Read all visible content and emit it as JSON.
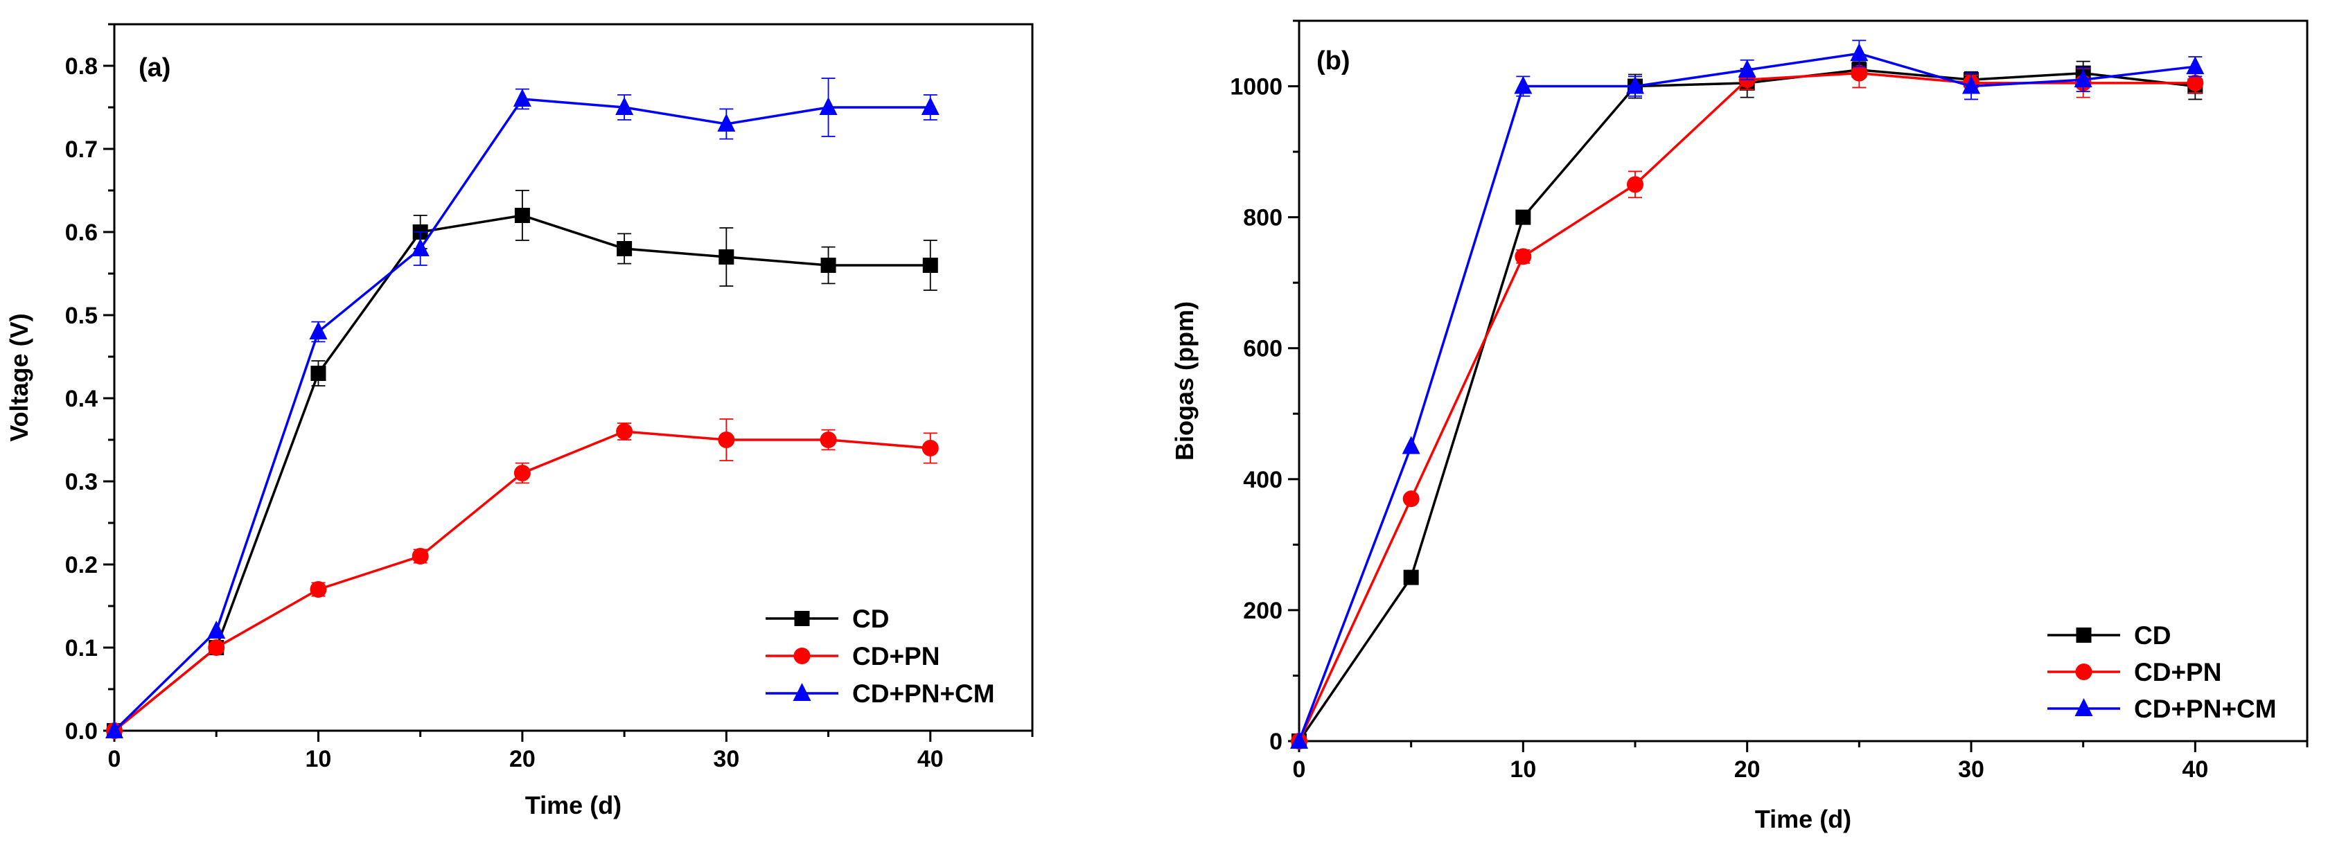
{
  "chart_data": [
    {
      "type": "line",
      "panel_label": "(a)",
      "xlabel": "Time (d)",
      "ylabel": "Voltage (V)",
      "xlim": [
        0,
        45
      ],
      "ylim": [
        0,
        0.85
      ],
      "xticks": [
        0,
        10,
        20,
        30,
        40
      ],
      "xtick_labels": [
        "0",
        "10",
        "20",
        "30",
        "40"
      ],
      "yticks": [
        0,
        0.1,
        0.2,
        0.3,
        0.4,
        0.5,
        0.6,
        0.7,
        0.8
      ],
      "ytick_labels": [
        "0.0",
        "0.1",
        "0.2",
        "0.3",
        "0.4",
        "0.5",
        "0.6",
        "0.7",
        "0.8"
      ],
      "legend_position": "bottom-right",
      "x": [
        0,
        5,
        10,
        15,
        20,
        25,
        30,
        35,
        40
      ],
      "series": [
        {
          "name": "CD",
          "color": "#000000",
          "marker": "square",
          "values": [
            0,
            0.1,
            0.43,
            0.6,
            0.62,
            0.58,
            0.57,
            0.56,
            0.56
          ],
          "errors": [
            0,
            0,
            0.015,
            0.02,
            0.03,
            0.018,
            0.035,
            0.022,
            0.03
          ]
        },
        {
          "name": "CD+PN",
          "color": "#ff0000",
          "marker": "circle",
          "values": [
            0,
            0.1,
            0.17,
            0.21,
            0.31,
            0.36,
            0.35,
            0.35,
            0.34
          ],
          "errors": [
            0,
            0,
            0.008,
            0.008,
            0.012,
            0.01,
            0.025,
            0.012,
            0.018
          ]
        },
        {
          "name": "CD+PN+CM",
          "color": "#0000ff",
          "marker": "triangle",
          "values": [
            0,
            0.12,
            0.48,
            0.58,
            0.76,
            0.75,
            0.73,
            0.75,
            0.75
          ],
          "errors": [
            0,
            0,
            0.012,
            0.02,
            0.012,
            0.015,
            0.018,
            0.035,
            0.015
          ]
        }
      ]
    },
    {
      "type": "line",
      "panel_label": "(b)",
      "xlabel": "Time (d)",
      "ylabel": "Biogas (ppm)",
      "xlim": [
        0,
        45
      ],
      "ylim": [
        0,
        1100
      ],
      "xticks": [
        0,
        10,
        20,
        30,
        40
      ],
      "xtick_labels": [
        "0",
        "10",
        "20",
        "30",
        "40"
      ],
      "yticks": [
        0,
        200,
        400,
        600,
        800,
        1000
      ],
      "ytick_labels": [
        "0",
        "200",
        "400",
        "600",
        "800",
        "1000"
      ],
      "legend_position": "bottom-right",
      "x": [
        0,
        5,
        10,
        15,
        20,
        25,
        30,
        35,
        40
      ],
      "series": [
        {
          "name": "CD",
          "color": "#000000",
          "marker": "square",
          "values": [
            0,
            250,
            800,
            1000,
            1005,
            1025,
            1010,
            1020,
            1000
          ],
          "errors": [
            0,
            0,
            0,
            18,
            22,
            12,
            12,
            18,
            20
          ]
        },
        {
          "name": "CD+PN",
          "color": "#ff0000",
          "marker": "circle",
          "values": [
            0,
            370,
            740,
            850,
            1010,
            1020,
            1005,
            1005,
            1005
          ],
          "errors": [
            0,
            0,
            10,
            20,
            15,
            22,
            12,
            22,
            15
          ]
        },
        {
          "name": "CD+PN+CM",
          "color": "#0000ff",
          "marker": "triangle",
          "values": [
            0,
            450,
            1000,
            1000,
            1025,
            1050,
            1000,
            1010,
            1030
          ],
          "errors": [
            0,
            0,
            15,
            15,
            15,
            20,
            20,
            18,
            15
          ]
        }
      ]
    }
  ]
}
